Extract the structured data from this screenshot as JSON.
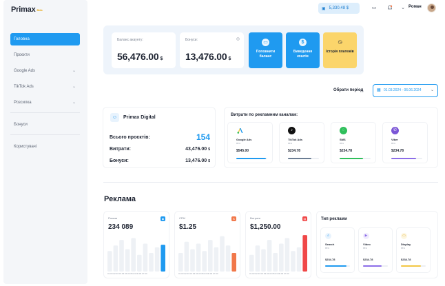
{
  "app": {
    "logo": "Primax",
    "logo_badge": "Beta"
  },
  "sidebar": {
    "items": [
      {
        "label": "Головна",
        "active": true
      },
      {
        "label": "Проєкти"
      },
      {
        "label": "Google Ads",
        "chevron": true
      },
      {
        "label": "TikTok Ads",
        "chevron": true
      },
      {
        "label": "Розсилка",
        "chevron": true
      },
      {
        "label": "Бонуси"
      },
      {
        "label": "Користувачі"
      }
    ]
  },
  "topbar": {
    "balance": "5,330.48 $",
    "user_name": "Роман",
    "icons": [
      "wallet-icon",
      "chat-icon",
      "bell-icon",
      "chevron-down-icon"
    ]
  },
  "balance_panel": {
    "balance_label": "Баланс акаунту:",
    "balance_value": "56,476.00",
    "bonus_label": "Бонуси:",
    "bonus_value": "13,476.00",
    "currency": "$",
    "actions": [
      {
        "label": "Поповнити баланс",
        "color": "#1f9af0",
        "icon": "card-icon"
      },
      {
        "label": "Виведення коштів",
        "color": "#1f9af0",
        "icon": "dollar-icon"
      },
      {
        "label": "Історія платежів",
        "color": "#fbd56b",
        "icon": "history-icon"
      }
    ]
  },
  "period": {
    "label": "Обрати період",
    "value": "01.03.2024 - 06.06.2024"
  },
  "summary": {
    "brand": "Primax Digital",
    "rows": [
      {
        "label": "Всього проєктів:",
        "value": "154"
      },
      {
        "label": "Витрати:",
        "value": "43,476.00",
        "currency": "$"
      },
      {
        "label": "Бонуси:",
        "value": "13,476.00",
        "currency": "$"
      }
    ]
  },
  "channels": {
    "title": "Витрати по рекламним каналам:",
    "items": [
      {
        "name": "Google Ads",
        "sub": "85%",
        "value": "$545.00",
        "fill": 0.95,
        "color": "#1f9af0",
        "icon_bg": "#ffffff",
        "icon": "google-ads-icon"
      },
      {
        "name": "TikTok Ads",
        "sub": "85%",
        "value": "$234.78",
        "fill": 0.75,
        "color": "#6b7d93",
        "icon_bg": "#111111",
        "icon": "tiktok-icon"
      },
      {
        "name": "SMS",
        "sub": "85%",
        "value": "$234.78",
        "fill": 0.75,
        "color": "#2fbf5b",
        "icon_bg": "#2fbf5b",
        "icon": "sms-icon"
      },
      {
        "name": "Viber",
        "sub": "85%",
        "value": "$234.78",
        "fill": 0.8,
        "color": "#8c6de8",
        "icon_bg": "#7b56d6",
        "icon": "viber-icon"
      }
    ]
  },
  "ads": {
    "title": "Реклама",
    "stats": [
      {
        "label": "Покази",
        "value": "234 089",
        "color": "#1f9af0",
        "badge": "eye-icon",
        "bars": [
          0.55,
          0.7,
          0.85,
          0.6,
          0.9,
          0.45,
          0.75,
          0.5,
          0.65,
          0.72
        ],
        "dates": "01.03 02.03 03.03 04.03 05.03 06.03 07.03"
      },
      {
        "label": "CPM",
        "value": "$1.25",
        "color": "#f1784a",
        "badge": "dollar-icon",
        "bars": [
          0.5,
          0.8,
          0.6,
          0.75,
          0.55,
          0.85,
          0.65,
          0.95,
          0.7,
          0.5
        ],
        "dates": "01.03 02.03 03.03 04.03 05.03 06.03 07.03"
      },
      {
        "label": "Витрати",
        "value": "$1,250.00",
        "color": "#f04848",
        "badge": "wallet-icon",
        "bars": [
          0.45,
          0.7,
          0.6,
          0.85,
          0.5,
          0.75,
          0.9,
          0.55,
          0.65,
          0.98
        ],
        "dates": "01.03 02.03 03.03 04.03 05.03 06.03 07.03"
      }
    ],
    "types": {
      "title": "Тип реклами",
      "items": [
        {
          "name": "Search",
          "sub": "85%",
          "value": "$234.78",
          "fill": 0.85,
          "color": "#1f9af0",
          "icon_bg": "#e8f3fd",
          "icon": "search-icon"
        },
        {
          "name": "Video",
          "sub": "85%",
          "value": "$234.78",
          "fill": 0.75,
          "color": "#8c6de8",
          "icon_bg": "#f0ebfc",
          "icon": "video-icon"
        },
        {
          "name": "Display",
          "sub": "85%",
          "value": "$234.78",
          "fill": 0.8,
          "color": "#f3c744",
          "icon_bg": "#fdf6e0",
          "icon": "display-icon"
        }
      ]
    }
  }
}
